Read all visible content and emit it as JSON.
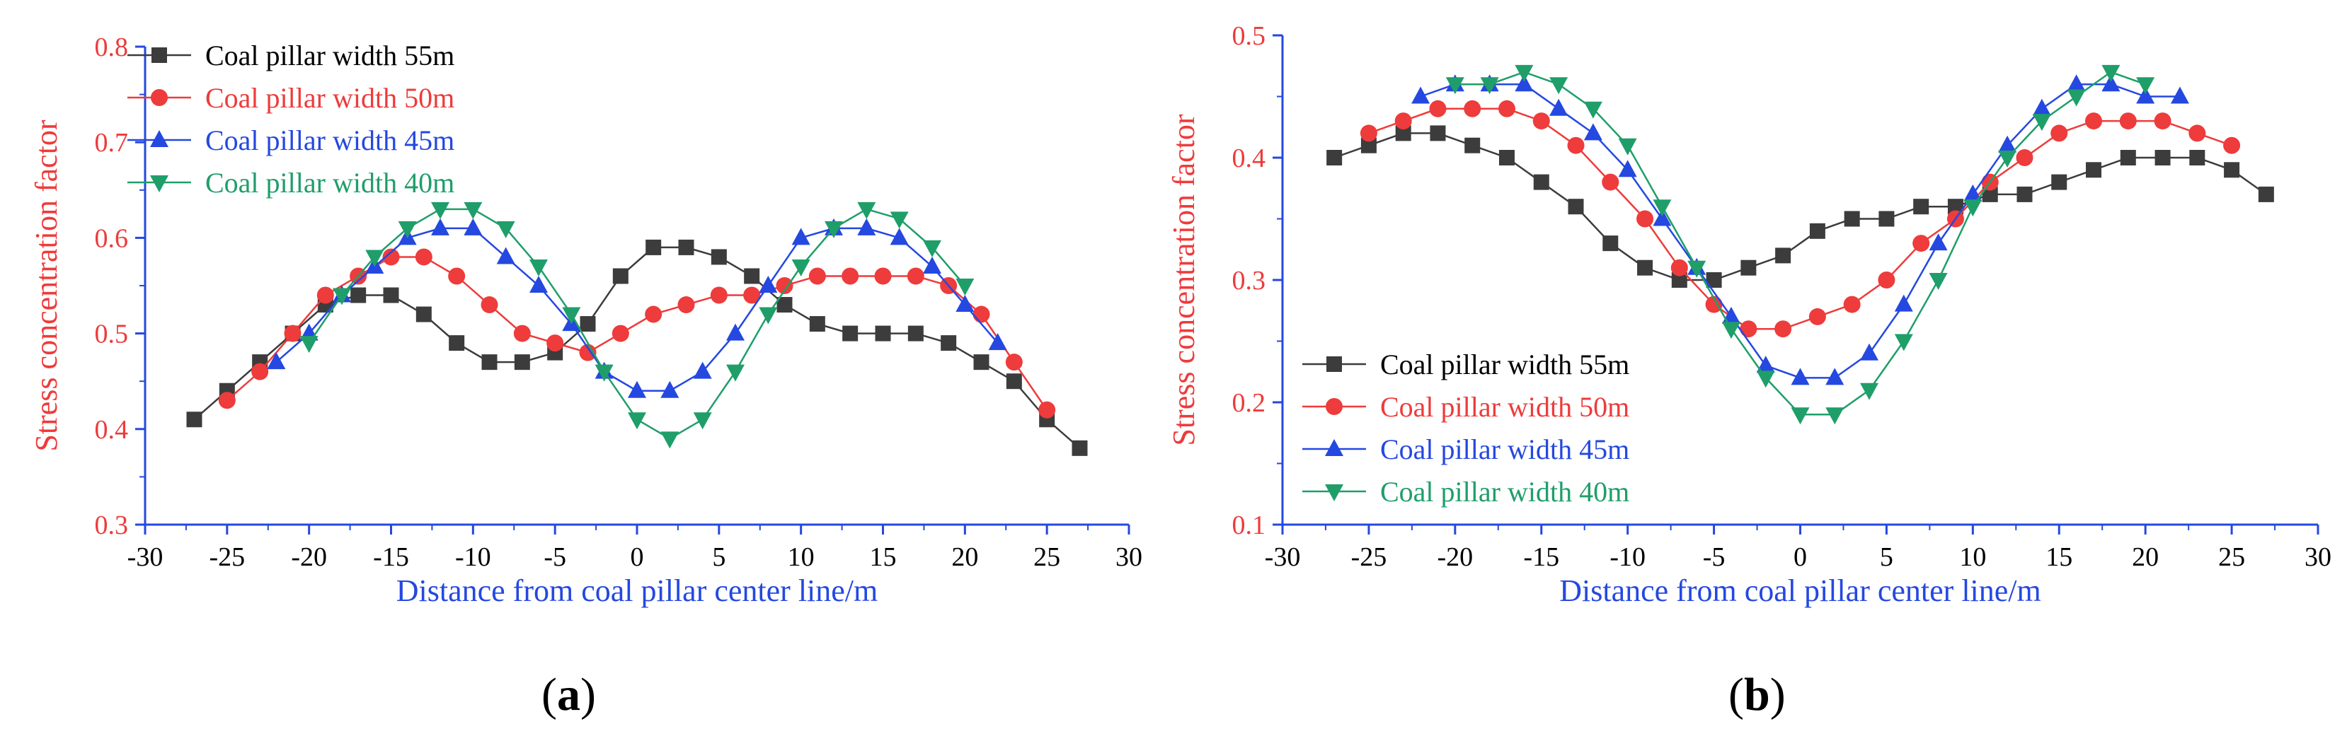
{
  "chart_data": [
    {
      "panel": "a",
      "type": "line",
      "xlabel": "Distance from coal pillar center line/m",
      "ylabel": "Stress concentration factor",
      "xlim": [
        -30,
        30
      ],
      "ylim": [
        0.3,
        0.8
      ],
      "xticks": [
        -30,
        -25,
        -20,
        -15,
        -10,
        -5,
        0,
        5,
        10,
        15,
        20,
        25,
        30
      ],
      "yticks": [
        0.3,
        0.4,
        0.5,
        0.6,
        0.7,
        0.8
      ],
      "legend_position": "top-left",
      "series": [
        {
          "name": "Coal pillar width 55m",
          "color": "#3c3c3c",
          "marker": "square",
          "x": [
            -27,
            -25,
            -23,
            -21,
            -19,
            -17,
            -15,
            -13,
            -11,
            -9,
            -7,
            -5,
            -3,
            -1,
            1,
            3,
            5,
            7,
            9,
            11,
            13,
            15,
            17,
            19,
            21,
            23,
            25,
            27
          ],
          "y": [
            0.41,
            0.44,
            0.47,
            0.5,
            0.53,
            0.54,
            0.54,
            0.52,
            0.49,
            0.47,
            0.47,
            0.48,
            0.51,
            0.56,
            0.59,
            0.59,
            0.58,
            0.56,
            0.53,
            0.51,
            0.5,
            0.5,
            0.5,
            0.49,
            0.47,
            0.45,
            0.41,
            0.38
          ]
        },
        {
          "name": "Coal pillar width 50m",
          "color": "#ee3b3b",
          "marker": "circle",
          "x": [
            -25,
            -23,
            -21,
            -19,
            -17,
            -15,
            -13,
            -11,
            -9,
            -7,
            -5,
            -3,
            -1,
            1,
            3,
            5,
            7,
            9,
            11,
            13,
            15,
            17,
            19,
            21,
            23,
            25
          ],
          "y": [
            0.43,
            0.46,
            0.5,
            0.54,
            0.56,
            0.58,
            0.58,
            0.56,
            0.53,
            0.5,
            0.49,
            0.48,
            0.5,
            0.52,
            0.53,
            0.54,
            0.54,
            0.55,
            0.56,
            0.56,
            0.56,
            0.56,
            0.55,
            0.52,
            0.47,
            0.42
          ]
        },
        {
          "name": "Coal pillar width 45m",
          "color": "#2448e0",
          "marker": "triangle-up",
          "x": [
            -22,
            -20,
            -18,
            -16,
            -14,
            -12,
            -10,
            -8,
            -6,
            -4,
            -2,
            0,
            2,
            4,
            6,
            8,
            10,
            12,
            14,
            16,
            18,
            20,
            22
          ],
          "y": [
            0.47,
            0.5,
            0.54,
            0.57,
            0.6,
            0.61,
            0.61,
            0.58,
            0.55,
            0.51,
            0.46,
            0.44,
            0.44,
            0.46,
            0.5,
            0.55,
            0.6,
            0.61,
            0.61,
            0.6,
            0.57,
            0.53,
            0.49
          ]
        },
        {
          "name": "Coal pillar width 40m",
          "color": "#1f9e6a",
          "marker": "triangle-down",
          "x": [
            -20,
            -18,
            -16,
            -14,
            -12,
            -10,
            -8,
            -6,
            -4,
            -2,
            0,
            2,
            4,
            6,
            8,
            10,
            12,
            14,
            16,
            18,
            20
          ],
          "y": [
            0.49,
            0.54,
            0.58,
            0.61,
            0.63,
            0.63,
            0.61,
            0.57,
            0.52,
            0.46,
            0.41,
            0.39,
            0.41,
            0.46,
            0.52,
            0.57,
            0.61,
            0.63,
            0.62,
            0.59,
            0.55
          ]
        }
      ]
    },
    {
      "panel": "b",
      "type": "line",
      "xlabel": "Distance from coal pillar center line/m",
      "ylabel": "Stress concentration factor",
      "xlim": [
        -30,
        30
      ],
      "ylim": [
        0.1,
        0.5
      ],
      "xticks": [
        -30,
        -25,
        -20,
        -15,
        -10,
        -5,
        0,
        5,
        10,
        15,
        20,
        25,
        30
      ],
      "yticks": [
        0.1,
        0.2,
        0.3,
        0.4,
        0.5
      ],
      "legend_position": "bottom-left",
      "series": [
        {
          "name": "Coal pillar width 55m",
          "color": "#3c3c3c",
          "marker": "square",
          "x": [
            -27,
            -25,
            -23,
            -21,
            -19,
            -17,
            -15,
            -13,
            -11,
            -9,
            -7,
            -5,
            -3,
            -1,
            1,
            3,
            5,
            7,
            9,
            11,
            13,
            15,
            17,
            19,
            21,
            23,
            25,
            27
          ],
          "y": [
            0.4,
            0.41,
            0.42,
            0.42,
            0.41,
            0.4,
            0.38,
            0.36,
            0.33,
            0.31,
            0.3,
            0.3,
            0.31,
            0.32,
            0.34,
            0.35,
            0.35,
            0.36,
            0.36,
            0.37,
            0.37,
            0.38,
            0.39,
            0.4,
            0.4,
            0.4,
            0.39,
            0.37
          ]
        },
        {
          "name": "Coal pillar width 50m",
          "color": "#ee3b3b",
          "marker": "circle",
          "x": [
            -25,
            -23,
            -21,
            -19,
            -17,
            -15,
            -13,
            -11,
            -9,
            -7,
            -5,
            -3,
            -1,
            1,
            3,
            5,
            7,
            9,
            11,
            13,
            15,
            17,
            19,
            21,
            23,
            25
          ],
          "y": [
            0.42,
            0.43,
            0.44,
            0.44,
            0.44,
            0.43,
            0.41,
            0.38,
            0.35,
            0.31,
            0.28,
            0.26,
            0.26,
            0.27,
            0.28,
            0.3,
            0.33,
            0.35,
            0.38,
            0.4,
            0.42,
            0.43,
            0.43,
            0.43,
            0.42,
            0.41
          ]
        },
        {
          "name": "Coal pillar width 45m",
          "color": "#2448e0",
          "marker": "triangle-up",
          "x": [
            -22,
            -20,
            -18,
            -16,
            -14,
            -12,
            -10,
            -8,
            -6,
            -4,
            -2,
            0,
            2,
            4,
            6,
            8,
            10,
            12,
            14,
            16,
            18,
            20,
            22
          ],
          "y": [
            0.45,
            0.46,
            0.46,
            0.46,
            0.44,
            0.42,
            0.39,
            0.35,
            0.31,
            0.27,
            0.23,
            0.22,
            0.22,
            0.24,
            0.28,
            0.33,
            0.37,
            0.41,
            0.44,
            0.46,
            0.46,
            0.45,
            0.45
          ]
        },
        {
          "name": "Coal pillar width 40m",
          "color": "#1f9e6a",
          "marker": "triangle-down",
          "x": [
            -20,
            -18,
            -16,
            -14,
            -12,
            -10,
            -8,
            -6,
            -4,
            -2,
            0,
            2,
            4,
            6,
            8,
            10,
            12,
            14,
            16,
            18,
            20
          ],
          "y": [
            0.46,
            0.46,
            0.47,
            0.46,
            0.44,
            0.41,
            0.36,
            0.31,
            0.26,
            0.22,
            0.19,
            0.19,
            0.21,
            0.25,
            0.3,
            0.36,
            0.4,
            0.43,
            0.45,
            0.47,
            0.46
          ]
        }
      ]
    }
  ],
  "panel_labels": {
    "a": "a",
    "b": "b"
  },
  "colors": {
    "ylabel": "#ee3b3b",
    "xlabel": "#2448e0",
    "axis": "#2448e0",
    "ytick": "#ee3b3b",
    "xtick": "#000000"
  }
}
